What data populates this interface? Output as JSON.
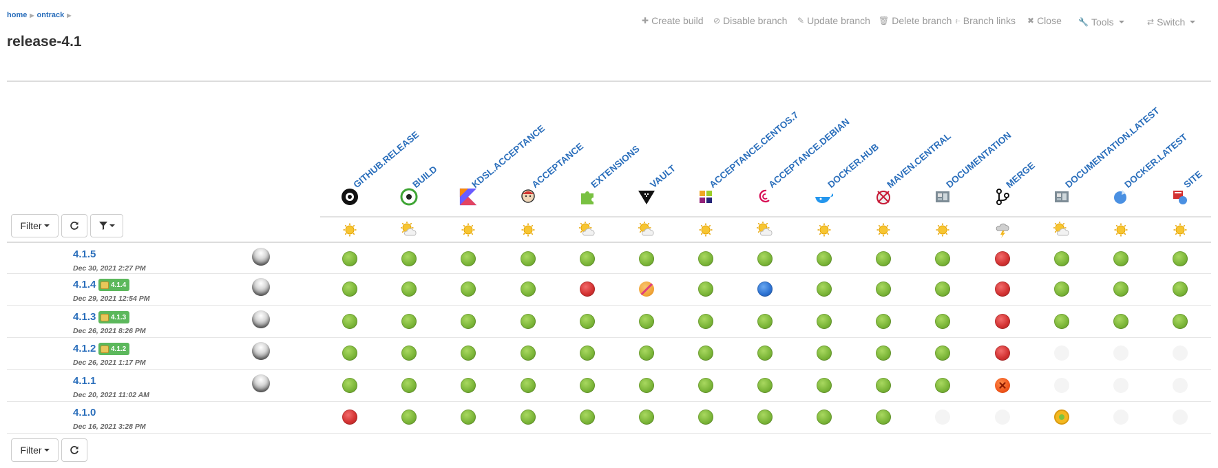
{
  "breadcrumb": {
    "home": "home",
    "project": "ontrack"
  },
  "page_title": "release-4.1",
  "actions": {
    "create_build": "Create build",
    "disable_branch": "Disable branch",
    "update_branch": "Update branch",
    "delete_branch": "Delete branch",
    "branch_links": "Branch links",
    "close": "Close",
    "tools": "Tools",
    "switch": "Switch"
  },
  "filter_label": "Filter",
  "validation_stamps": [
    {
      "name": "GITHUB.RELEASE",
      "icon": "github-icon",
      "weather": "sunny"
    },
    {
      "name": "BUILD",
      "icon": "circleci-icon",
      "weather": "sun-clouds"
    },
    {
      "name": "KDSL.ACCEPTANCE",
      "icon": "kotlin-icon",
      "weather": "sunny"
    },
    {
      "name": "ACCEPTANCE",
      "icon": "jenkins-icon",
      "weather": "sunny"
    },
    {
      "name": "EXTENSIONS",
      "icon": "puzzle-icon",
      "weather": "sun-clouds"
    },
    {
      "name": "VAULT",
      "icon": "vault-icon",
      "weather": "sun-clouds"
    },
    {
      "name": "ACCEPTANCE.CENTOS.7",
      "icon": "centos-icon",
      "weather": "sunny"
    },
    {
      "name": "ACCEPTANCE.DEBIAN",
      "icon": "debian-icon",
      "weather": "sun-clouds"
    },
    {
      "name": "DOCKER.HUB",
      "icon": "docker-icon",
      "weather": "sunny"
    },
    {
      "name": "MAVEN.CENTRAL",
      "icon": "maven-icon",
      "weather": "sunny"
    },
    {
      "name": "DOCUMENTATION",
      "icon": "documentation-icon",
      "weather": "sunny"
    },
    {
      "name": "MERGE",
      "icon": "merge-icon",
      "weather": "storm"
    },
    {
      "name": "DOCUMENTATION.LATEST",
      "icon": "documentation-icon",
      "weather": "sun-clouds"
    },
    {
      "name": "DOCKER.LATEST",
      "icon": "docker-latest-icon",
      "weather": "sunny"
    },
    {
      "name": "SITE",
      "icon": "site-icon",
      "weather": "sunny"
    }
  ],
  "builds": [
    {
      "name": "4.1.5",
      "date": "Dec 30, 2021 2:27 PM",
      "badge": null,
      "promoted": true,
      "runs": [
        "passed",
        "passed",
        "passed",
        "passed",
        "passed",
        "passed",
        "passed",
        "passed",
        "passed",
        "passed",
        "passed",
        "failed",
        "passed",
        "passed",
        "passed"
      ]
    },
    {
      "name": "4.1.4",
      "date": "Dec 29, 2021 12:54 PM",
      "badge": "4.1.4",
      "promoted": true,
      "runs": [
        "passed",
        "passed",
        "passed",
        "passed",
        "failed",
        "defect",
        "passed",
        "running",
        "passed",
        "passed",
        "passed",
        "failed",
        "passed",
        "passed",
        "passed"
      ]
    },
    {
      "name": "4.1.3",
      "date": "Dec 26, 2021 8:26 PM",
      "badge": "4.1.3",
      "promoted": true,
      "runs": [
        "passed",
        "passed",
        "passed",
        "passed",
        "passed",
        "passed",
        "passed",
        "passed",
        "passed",
        "passed",
        "passed",
        "failed",
        "passed",
        "passed",
        "passed"
      ]
    },
    {
      "name": "4.1.2",
      "date": "Dec 26, 2021 1:17 PM",
      "badge": "4.1.2",
      "promoted": true,
      "runs": [
        "passed",
        "passed",
        "passed",
        "passed",
        "passed",
        "passed",
        "passed",
        "passed",
        "passed",
        "passed",
        "passed",
        "failed",
        "none",
        "none",
        "none"
      ]
    },
    {
      "name": "4.1.1",
      "date": "Dec 20, 2021 11:02 AM",
      "badge": null,
      "promoted": true,
      "runs": [
        "passed",
        "passed",
        "passed",
        "passed",
        "passed",
        "passed",
        "passed",
        "passed",
        "passed",
        "passed",
        "passed",
        "interrupted",
        "none",
        "none",
        "none"
      ]
    },
    {
      "name": "4.1.0",
      "date": "Dec 16, 2021 3:28 PM",
      "badge": null,
      "promoted": false,
      "runs": [
        "failed",
        "passed",
        "passed",
        "passed",
        "passed",
        "passed",
        "passed",
        "passed",
        "passed",
        "passed",
        "none",
        "none",
        "warning",
        "none",
        "none"
      ]
    }
  ],
  "colors": {
    "link": "#2a6ebb",
    "passed": "#7cb639",
    "failed": "#d33232",
    "badge": "#5cb85c"
  }
}
